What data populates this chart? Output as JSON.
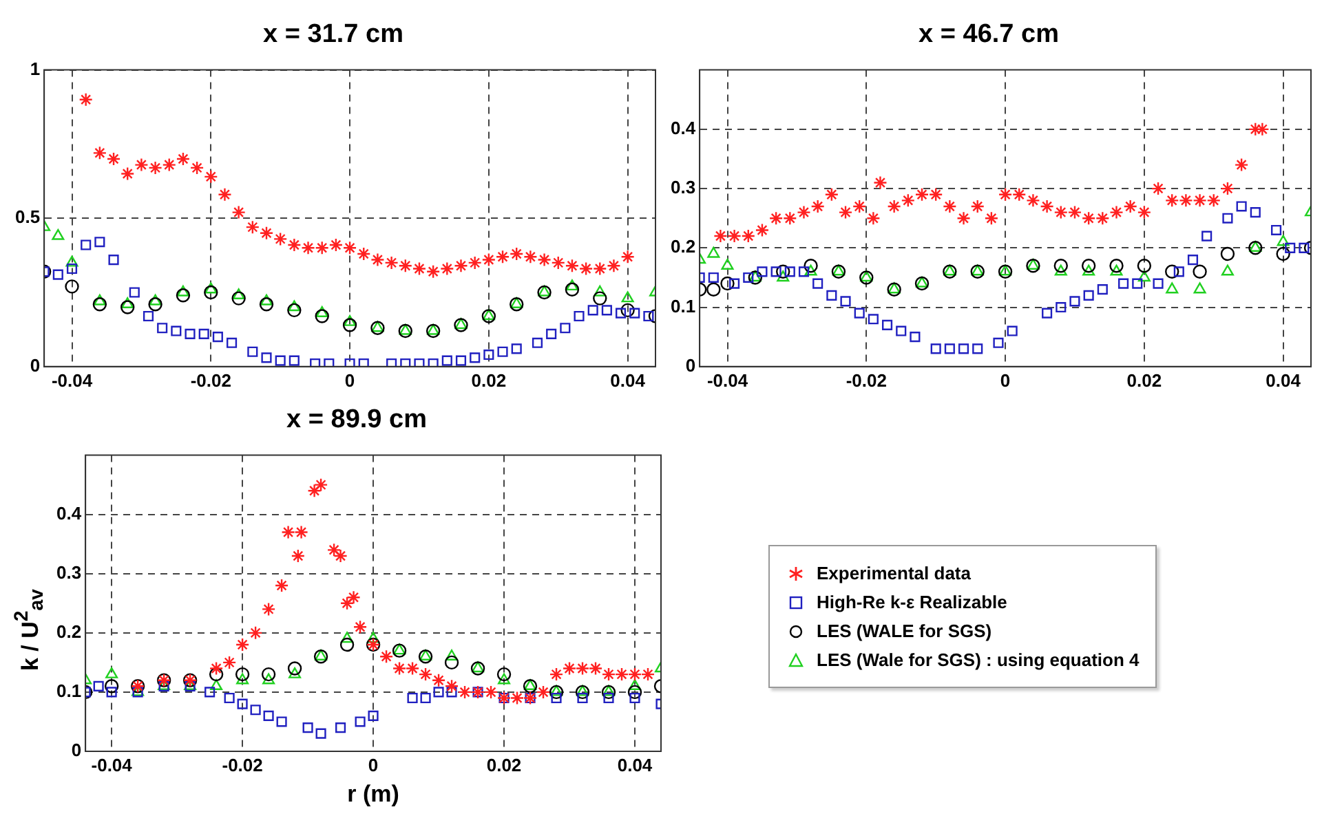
{
  "chart_data": [
    {
      "type": "scatter",
      "title": "x = 31.7 cm",
      "xlim": [
        -0.044,
        0.044
      ],
      "xticks": [
        -0.04,
        -0.02,
        0,
        0.02,
        0.04
      ],
      "ylim": [
        0,
        1
      ],
      "yticks": [
        0,
        0.5,
        1
      ],
      "grid": true,
      "series": [
        {
          "color": "#ff2020",
          "marker": "cross",
          "x": [
            -0.038,
            -0.036,
            -0.034,
            -0.032,
            -0.03,
            -0.028,
            -0.026,
            -0.024,
            -0.022,
            -0.02,
            -0.018,
            -0.016,
            -0.014,
            -0.012,
            -0.01,
            -0.008,
            -0.006,
            -0.004,
            -0.002,
            0,
            0.002,
            0.004,
            0.006,
            0.008,
            0.01,
            0.012,
            0.014,
            0.016,
            0.018,
            0.02,
            0.022,
            0.024,
            0.026,
            0.028,
            0.03,
            0.032,
            0.034,
            0.036,
            0.038,
            0.04
          ],
          "values": [
            0.9,
            0.72,
            0.7,
            0.65,
            0.68,
            0.67,
            0.68,
            0.7,
            0.67,
            0.64,
            0.58,
            0.52,
            0.47,
            0.45,
            0.43,
            0.41,
            0.4,
            0.4,
            0.41,
            0.4,
            0.38,
            0.36,
            0.35,
            0.34,
            0.33,
            0.32,
            0.33,
            0.34,
            0.35,
            0.36,
            0.37,
            0.38,
            0.37,
            0.36,
            0.35,
            0.34,
            0.33,
            0.33,
            0.34,
            0.37
          ]
        },
        {
          "color": "#2020c0",
          "marker": "square",
          "x": [
            -0.044,
            -0.042,
            -0.04,
            -0.038,
            -0.036,
            -0.034,
            -0.031,
            -0.029,
            -0.027,
            -0.025,
            -0.023,
            -0.021,
            -0.019,
            -0.017,
            -0.014,
            -0.012,
            -0.01,
            -0.008,
            -0.005,
            -0.003,
            0,
            0.002,
            0.006,
            0.008,
            0.01,
            0.012,
            0.014,
            0.016,
            0.018,
            0.02,
            0.022,
            0.024,
            0.027,
            0.029,
            0.031,
            0.033,
            0.035,
            0.037,
            0.039,
            0.041,
            0.043
          ],
          "values": [
            0.32,
            0.31,
            0.33,
            0.41,
            0.42,
            0.36,
            0.25,
            0.17,
            0.13,
            0.12,
            0.11,
            0.11,
            0.1,
            0.08,
            0.05,
            0.03,
            0.02,
            0.02,
            0.01,
            0.01,
            0.01,
            0.01,
            0.01,
            0.01,
            0.01,
            0.01,
            0.02,
            0.02,
            0.03,
            0.04,
            0.05,
            0.06,
            0.08,
            0.11,
            0.13,
            0.17,
            0.19,
            0.19,
            0.18,
            0.18,
            0.17
          ]
        },
        {
          "color": "#000000",
          "marker": "circle",
          "x": [
            -0.044,
            -0.04,
            -0.036,
            -0.032,
            -0.028,
            -0.024,
            -0.02,
            -0.016,
            -0.012,
            -0.008,
            -0.004,
            0,
            0.004,
            0.008,
            0.012,
            0.016,
            0.02,
            0.024,
            0.028,
            0.032,
            0.036,
            0.04,
            0.044
          ],
          "values": [
            0.32,
            0.27,
            0.21,
            0.2,
            0.21,
            0.24,
            0.25,
            0.23,
            0.21,
            0.19,
            0.17,
            0.14,
            0.13,
            0.12,
            0.12,
            0.14,
            0.17,
            0.21,
            0.25,
            0.26,
            0.23,
            0.19,
            0.17
          ]
        },
        {
          "color": "#20d020",
          "marker": "triangle",
          "x": [
            -0.044,
            -0.042,
            -0.04,
            -0.036,
            -0.032,
            -0.028,
            -0.024,
            -0.02,
            -0.016,
            -0.012,
            -0.008,
            -0.004,
            0,
            0.004,
            0.008,
            0.012,
            0.016,
            0.02,
            0.024,
            0.028,
            0.032,
            0.036,
            0.04,
            0.044
          ],
          "values": [
            0.47,
            0.44,
            0.35,
            0.22,
            0.21,
            0.22,
            0.25,
            0.26,
            0.24,
            0.22,
            0.2,
            0.18,
            0.15,
            0.13,
            0.12,
            0.12,
            0.14,
            0.17,
            0.21,
            0.25,
            0.27,
            0.25,
            0.23,
            0.25
          ]
        }
      ]
    },
    {
      "type": "scatter",
      "title": "x = 46.7 cm",
      "xlim": [
        -0.044,
        0.044
      ],
      "xticks": [
        -0.04,
        -0.02,
        0,
        0.02,
        0.04
      ],
      "ylim": [
        0,
        0.5
      ],
      "yticks": [
        0,
        0.1,
        0.2,
        0.3,
        0.4
      ],
      "grid": true,
      "series": [
        {
          "color": "#ff2020",
          "marker": "cross",
          "x": [
            -0.041,
            -0.039,
            -0.037,
            -0.035,
            -0.033,
            -0.031,
            -0.029,
            -0.027,
            -0.025,
            -0.023,
            -0.021,
            -0.019,
            -0.018,
            -0.016,
            -0.014,
            -0.012,
            -0.01,
            -0.008,
            -0.006,
            -0.004,
            -0.002,
            0,
            0.002,
            0.004,
            0.006,
            0.008,
            0.01,
            0.012,
            0.014,
            0.016,
            0.018,
            0.02,
            0.022,
            0.024,
            0.026,
            0.028,
            0.03,
            0.032,
            0.034,
            0.036,
            0.037
          ],
          "values": [
            0.22,
            0.22,
            0.22,
            0.23,
            0.25,
            0.25,
            0.26,
            0.27,
            0.29,
            0.26,
            0.27,
            0.25,
            0.31,
            0.27,
            0.28,
            0.29,
            0.29,
            0.27,
            0.25,
            0.27,
            0.25,
            0.29,
            0.29,
            0.28,
            0.27,
            0.26,
            0.26,
            0.25,
            0.25,
            0.26,
            0.27,
            0.26,
            0.3,
            0.28,
            0.28,
            0.28,
            0.28,
            0.3,
            0.34,
            0.4,
            0.4
          ]
        },
        {
          "color": "#2020c0",
          "marker": "square",
          "x": [
            -0.044,
            -0.042,
            -0.039,
            -0.037,
            -0.035,
            -0.033,
            -0.031,
            -0.029,
            -0.027,
            -0.025,
            -0.023,
            -0.021,
            -0.019,
            -0.017,
            -0.015,
            -0.013,
            -0.01,
            -0.008,
            -0.006,
            -0.004,
            -0.001,
            0.001,
            0.006,
            0.008,
            0.01,
            0.012,
            0.014,
            0.017,
            0.019,
            0.022,
            0.025,
            0.027,
            0.029,
            0.032,
            0.034,
            0.036,
            0.039,
            0.041,
            0.043
          ],
          "values": [
            0.15,
            0.15,
            0.14,
            0.15,
            0.16,
            0.16,
            0.16,
            0.16,
            0.14,
            0.12,
            0.11,
            0.09,
            0.08,
            0.07,
            0.06,
            0.05,
            0.03,
            0.03,
            0.03,
            0.03,
            0.04,
            0.06,
            0.09,
            0.1,
            0.11,
            0.12,
            0.13,
            0.14,
            0.14,
            0.14,
            0.16,
            0.18,
            0.22,
            0.25,
            0.27,
            0.26,
            0.23,
            0.2,
            0.2
          ]
        },
        {
          "color": "#000000",
          "marker": "circle",
          "x": [
            -0.044,
            -0.042,
            -0.04,
            -0.036,
            -0.032,
            -0.028,
            -0.024,
            -0.02,
            -0.016,
            -0.012,
            -0.008,
            -0.004,
            0,
            0.004,
            0.008,
            0.012,
            0.016,
            0.02,
            0.024,
            0.028,
            0.032,
            0.036,
            0.04,
            0.044
          ],
          "values": [
            0.13,
            0.13,
            0.14,
            0.15,
            0.16,
            0.17,
            0.16,
            0.15,
            0.13,
            0.14,
            0.16,
            0.16,
            0.16,
            0.17,
            0.17,
            0.17,
            0.17,
            0.17,
            0.16,
            0.16,
            0.19,
            0.2,
            0.19,
            0.2
          ]
        },
        {
          "color": "#20d020",
          "marker": "triangle",
          "x": [
            -0.044,
            -0.042,
            -0.04,
            -0.036,
            -0.032,
            -0.028,
            -0.024,
            -0.02,
            -0.016,
            -0.012,
            -0.008,
            -0.004,
            0,
            0.004,
            0.008,
            0.012,
            0.016,
            0.02,
            0.024,
            0.028,
            0.032,
            0.036,
            0.04,
            0.044
          ],
          "values": [
            0.18,
            0.19,
            0.17,
            0.15,
            0.15,
            0.16,
            0.16,
            0.15,
            0.13,
            0.14,
            0.16,
            0.16,
            0.16,
            0.17,
            0.16,
            0.16,
            0.16,
            0.15,
            0.13,
            0.13,
            0.16,
            0.2,
            0.21,
            0.26
          ]
        }
      ]
    },
    {
      "type": "scatter",
      "title": "x = 89.9 cm",
      "xlabel": "r (m)",
      "ylabel": "k / U$^{2}$$_{av}$",
      "xlim": [
        -0.044,
        0.044
      ],
      "xticks": [
        -0.04,
        -0.02,
        0,
        0.02,
        0.04
      ],
      "ylim": [
        0,
        0.5
      ],
      "yticks": [
        0,
        0.1,
        0.2,
        0.3,
        0.4
      ],
      "grid": true,
      "legend": "right",
      "series": [
        {
          "name": "Experimental data",
          "color": "#ff2020",
          "marker": "cross",
          "x": [
            -0.036,
            -0.032,
            -0.028,
            -0.024,
            -0.022,
            -0.02,
            -0.018,
            -0.016,
            -0.014,
            -0.013,
            -0.0115,
            -0.011,
            -0.009,
            -0.008,
            -0.006,
            -0.005,
            -0.004,
            -0.003,
            -0.002,
            0,
            0.002,
            0.004,
            0.006,
            0.008,
            0.01,
            0.012,
            0.014,
            0.016,
            0.018,
            0.02,
            0.022,
            0.024,
            0.026,
            0.028,
            0.03,
            0.032,
            0.034,
            0.036,
            0.038,
            0.04,
            0.042
          ],
          "values": [
            0.11,
            0.12,
            0.12,
            0.14,
            0.15,
            0.18,
            0.2,
            0.24,
            0.28,
            0.37,
            0.33,
            0.37,
            0.44,
            0.45,
            0.34,
            0.33,
            0.25,
            0.26,
            0.21,
            0.18,
            0.16,
            0.14,
            0.14,
            0.13,
            0.12,
            0.11,
            0.1,
            0.1,
            0.1,
            0.09,
            0.09,
            0.09,
            0.1,
            0.13,
            0.14,
            0.14,
            0.14,
            0.13,
            0.13,
            0.13,
            0.13
          ]
        },
        {
          "name": "High-Re k-ε Realizable",
          "color": "#2020c0",
          "marker": "square",
          "x": [
            -0.044,
            -0.042,
            -0.04,
            -0.036,
            -0.032,
            -0.028,
            -0.025,
            -0.022,
            -0.02,
            -0.018,
            -0.016,
            -0.014,
            -0.01,
            -0.008,
            -0.005,
            -0.002,
            0,
            0.006,
            0.008,
            0.01,
            0.012,
            0.016,
            0.02,
            0.024,
            0.028,
            0.032,
            0.036,
            0.04,
            0.044
          ],
          "values": [
            0.1,
            0.11,
            0.1,
            0.1,
            0.11,
            0.11,
            0.1,
            0.09,
            0.08,
            0.07,
            0.06,
            0.05,
            0.04,
            0.03,
            0.04,
            0.05,
            0.06,
            0.09,
            0.09,
            0.1,
            0.1,
            0.1,
            0.09,
            0.09,
            0.09,
            0.09,
            0.09,
            0.09,
            0.08
          ]
        },
        {
          "name": "LES (WALE for SGS)",
          "color": "#000000",
          "marker": "circle",
          "x": [
            -0.044,
            -0.04,
            -0.036,
            -0.032,
            -0.028,
            -0.024,
            -0.02,
            -0.016,
            -0.012,
            -0.008,
            -0.004,
            0,
            0.004,
            0.008,
            0.012,
            0.016,
            0.02,
            0.024,
            0.028,
            0.032,
            0.036,
            0.04,
            0.044
          ],
          "values": [
            0.1,
            0.11,
            0.11,
            0.12,
            0.12,
            0.13,
            0.13,
            0.13,
            0.14,
            0.16,
            0.18,
            0.18,
            0.17,
            0.16,
            0.15,
            0.14,
            0.13,
            0.11,
            0.1,
            0.1,
            0.1,
            0.1,
            0.11
          ]
        },
        {
          "name": "LES (Wale for SGS) : using equation 4",
          "color": "#20d020",
          "marker": "triangle",
          "x": [
            -0.044,
            -0.04,
            -0.036,
            -0.032,
            -0.028,
            -0.024,
            -0.02,
            -0.016,
            -0.012,
            -0.008,
            -0.004,
            0,
            0.004,
            0.008,
            0.012,
            0.016,
            0.02,
            0.024,
            0.028,
            0.032,
            0.036,
            0.04,
            0.044
          ],
          "values": [
            0.12,
            0.13,
            0.1,
            0.11,
            0.11,
            0.11,
            0.12,
            0.12,
            0.13,
            0.16,
            0.19,
            0.19,
            0.17,
            0.16,
            0.16,
            0.14,
            0.12,
            0.11,
            0.1,
            0.1,
            0.1,
            0.11,
            0.14
          ]
        }
      ]
    }
  ]
}
